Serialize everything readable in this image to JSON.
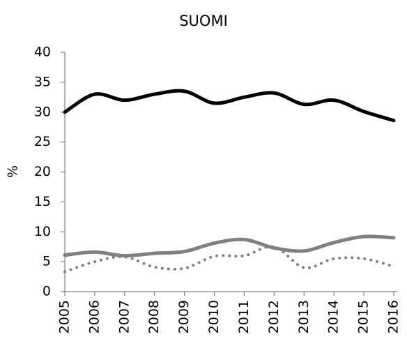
{
  "chart_data": {
    "type": "line",
    "title": "SUOMI",
    "y_label": "%",
    "categories": [
      "2005",
      "2006",
      "2007",
      "2008",
      "2009",
      "2010",
      "2011",
      "2012",
      "2013",
      "2014",
      "2015",
      "2016"
    ],
    "series": [
      {
        "color": "#000000",
        "line_style": "solid",
        "values": [
          30,
          33,
          32,
          33,
          33.5,
          31.5,
          32.5,
          33.2,
          31.3,
          32,
          30.1,
          28.6
        ]
      },
      {
        "color": "#808080",
        "line_style": "solid",
        "values": [
          6.1,
          6.6,
          6,
          6.4,
          6.7,
          8.1,
          8.7,
          7.3,
          6.8,
          8.2,
          9.2,
          9
        ]
      },
      {
        "color": "#808080",
        "line_style": "dotted",
        "values": [
          3.3,
          5,
          5.8,
          4.1,
          3.9,
          5.9,
          6,
          7.5,
          4,
          5.5,
          5.5,
          4.2
        ]
      }
    ],
    "ylim": [
      0,
      40
    ],
    "yticks": [
      0,
      5,
      10,
      15,
      20,
      25,
      30,
      35,
      40
    ],
    "grid": false
  }
}
